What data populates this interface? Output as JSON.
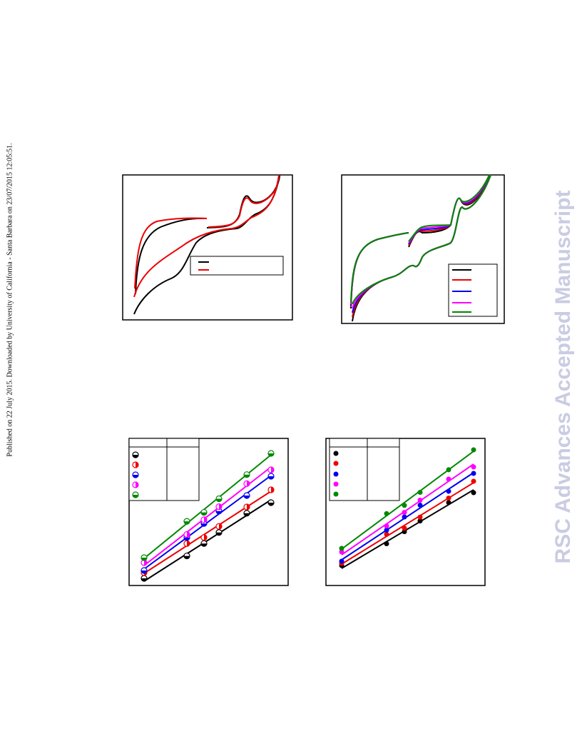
{
  "header": {
    "publication_note": "Published on 22 July 2015. Downloaded by University of California - Santa Barbara on 23/07/2015 12:05:51."
  },
  "watermark": {
    "text": "RSC Advances Accepted Manuscript"
  }
}
